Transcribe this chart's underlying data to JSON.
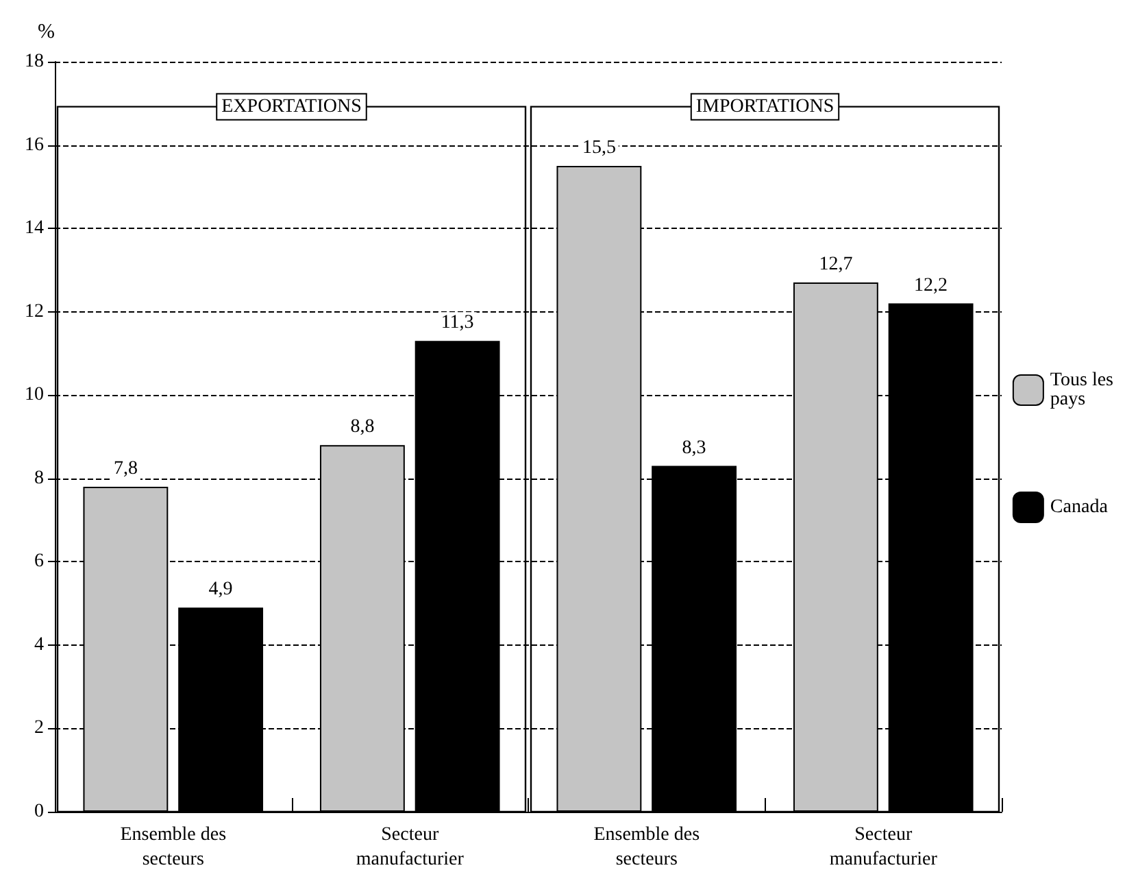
{
  "chart_data": {
    "type": "bar",
    "ylabel": "%",
    "categories": [
      "Ensemble des secteurs",
      "Secteur manufacturier",
      "Ensemble des secteurs",
      "Secteur manufacturier"
    ],
    "series": [
      {
        "name": "Tous les pays",
        "color": "#c4c4c4",
        "values": [
          7.8,
          8.8,
          15.5,
          12.7
        ],
        "value_labels": [
          "7,8",
          "8,8",
          "15,5",
          "12,7"
        ]
      },
      {
        "name": "Canada",
        "color": "#000000",
        "values": [
          4.9,
          11.3,
          8.3,
          12.2
        ],
        "value_labels": [
          "4,9",
          "11,3",
          "8,3",
          "12,2"
        ]
      }
    ],
    "ylim": [
      0,
      18
    ],
    "yticks": [
      0,
      2,
      4,
      6,
      8,
      10,
      12,
      14,
      16,
      18
    ],
    "grid": "y",
    "legend": "right",
    "annotations": [
      "EXPORTATIONS",
      "IMPORTATIONS"
    ]
  }
}
